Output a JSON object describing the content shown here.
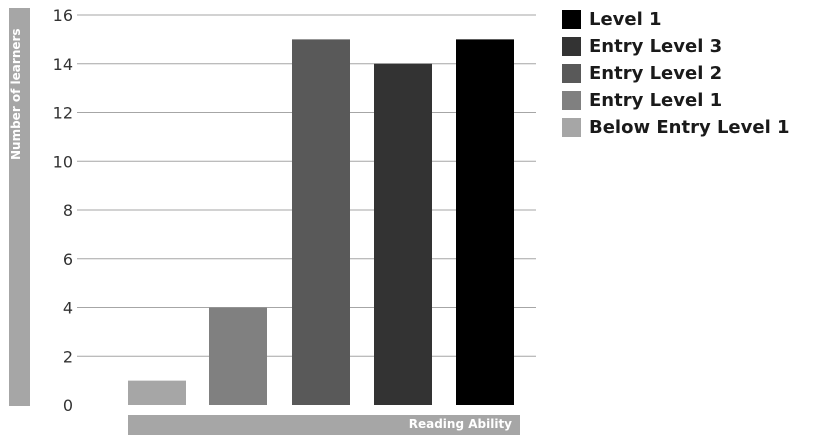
{
  "chart_data": {
    "type": "bar",
    "categories": [
      "Below Entry Level 1",
      "Entry Level 1",
      "Entry Level 2",
      "Entry Level 3",
      "Level 1"
    ],
    "values": [
      1,
      4,
      15,
      14,
      15
    ],
    "series_colors": [
      "#a6a6a6",
      "#808080",
      "#595959",
      "#333333",
      "#000000"
    ],
    "ylabel": "Number of learners",
    "xlabel": "Reading Ability",
    "ylim": [
      0,
      16
    ],
    "yticks": [
      "0",
      "2",
      "4",
      "6",
      "8",
      "10",
      "12",
      "14",
      "16"
    ],
    "grid": true,
    "legend_position": "right",
    "legend": [
      {
        "label": "Level 1",
        "color": "#000000"
      },
      {
        "label": "Entry Level 3",
        "color": "#333333"
      },
      {
        "label": "Entry Level 2",
        "color": "#595959"
      },
      {
        "label": "Entry Level 1",
        "color": "#808080"
      },
      {
        "label": "Below Entry Level 1",
        "color": "#a6a6a6"
      }
    ]
  }
}
